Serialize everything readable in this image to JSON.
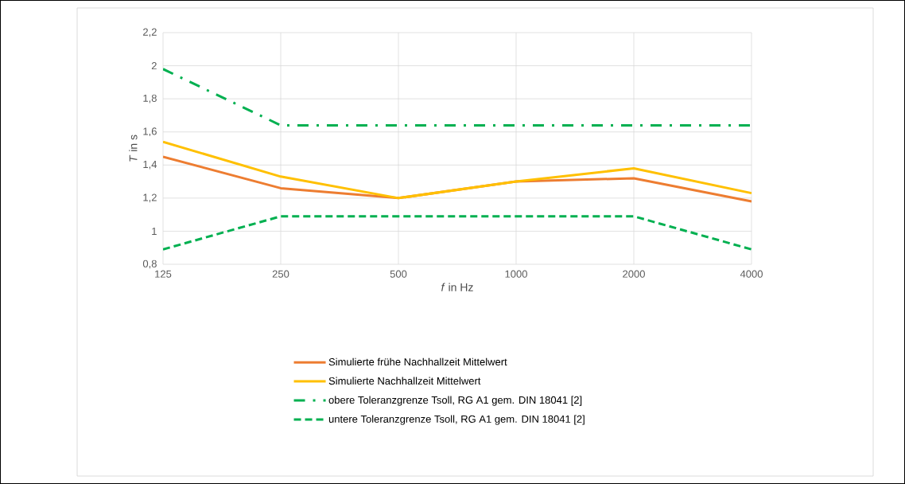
{
  "chart_data": {
    "type": "line",
    "xlabel": "*f* in Hz",
    "ylabel": "*T* in s",
    "categories": [
      "125",
      "250",
      "500",
      "1000",
      "2000",
      "4000"
    ],
    "series": [
      {
        "name": "Simulierte frühe Nachhallzeit Mittelwert",
        "color": "#ed7d31",
        "line_style": "solid",
        "values": [
          1.45,
          1.26,
          1.2,
          1.3,
          1.32,
          1.18
        ]
      },
      {
        "name": "Simulierte Nachhallzeit Mittelwert",
        "color": "#ffc000",
        "line_style": "solid",
        "values": [
          1.54,
          1.33,
          1.2,
          1.3,
          1.38,
          1.23
        ]
      },
      {
        "name": "obere Toleranzgrenze Tsoll, RG A1 gem. DIN 18041 [2]",
        "color": "#00b050",
        "line_style": "dashdot",
        "values": [
          1.98,
          1.64,
          1.64,
          1.64,
          1.64,
          1.64
        ]
      },
      {
        "name": "untere Toleranzgrenze Tsoll, RG A1 gem. DIN 18041 [2]",
        "color": "#00b050",
        "line_style": "dashed",
        "values": [
          0.89,
          1.09,
          1.09,
          1.09,
          1.09,
          0.89
        ]
      }
    ],
    "ylim": [
      0.8,
      2.2
    ],
    "yticks": [
      {
        "value": 0.8,
        "label": "0,8"
      },
      1,
      {
        "value": 1.2,
        "label": "1,2"
      },
      {
        "value": 1.4,
        "label": "1,4"
      },
      {
        "value": 1.6,
        "label": "1,6"
      },
      {
        "value": 1.8,
        "label": "1,8"
      },
      2,
      {
        "value": 2.2,
        "label": "2,2"
      }
    ],
    "grid": true,
    "legend": "bottom",
    "marker": "none"
  }
}
